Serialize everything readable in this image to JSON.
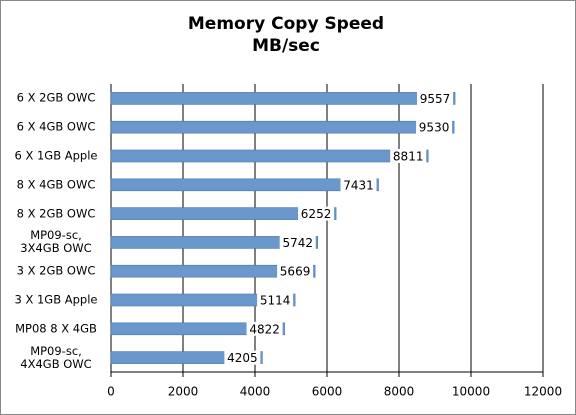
{
  "chart_data": {
    "type": "hbar",
    "title": "Memory Copy Speed",
    "subtitle": "MB/sec",
    "categories": [
      "6 X 2GB OWC",
      "6 X 4GB OWC",
      "6 X 1GB Apple",
      "8 X 4GB OWC",
      "8 X 2GB OWC",
      "MP09-sc, 3X4GB OWC",
      "3 X 2GB OWC",
      "3 X 1GB Apple",
      "MP08 8 X 4GB",
      "MP09-sc, 4X4GB OWC"
    ],
    "values": [
      9557,
      9530,
      8811,
      7431,
      6252,
      5742,
      5669,
      5114,
      4822,
      4205
    ],
    "color": "#6b98cc",
    "xlim": [
      0,
      12000
    ],
    "xticks": [
      0,
      2000,
      4000,
      6000,
      8000,
      10000,
      12000
    ],
    "grid": true
  }
}
